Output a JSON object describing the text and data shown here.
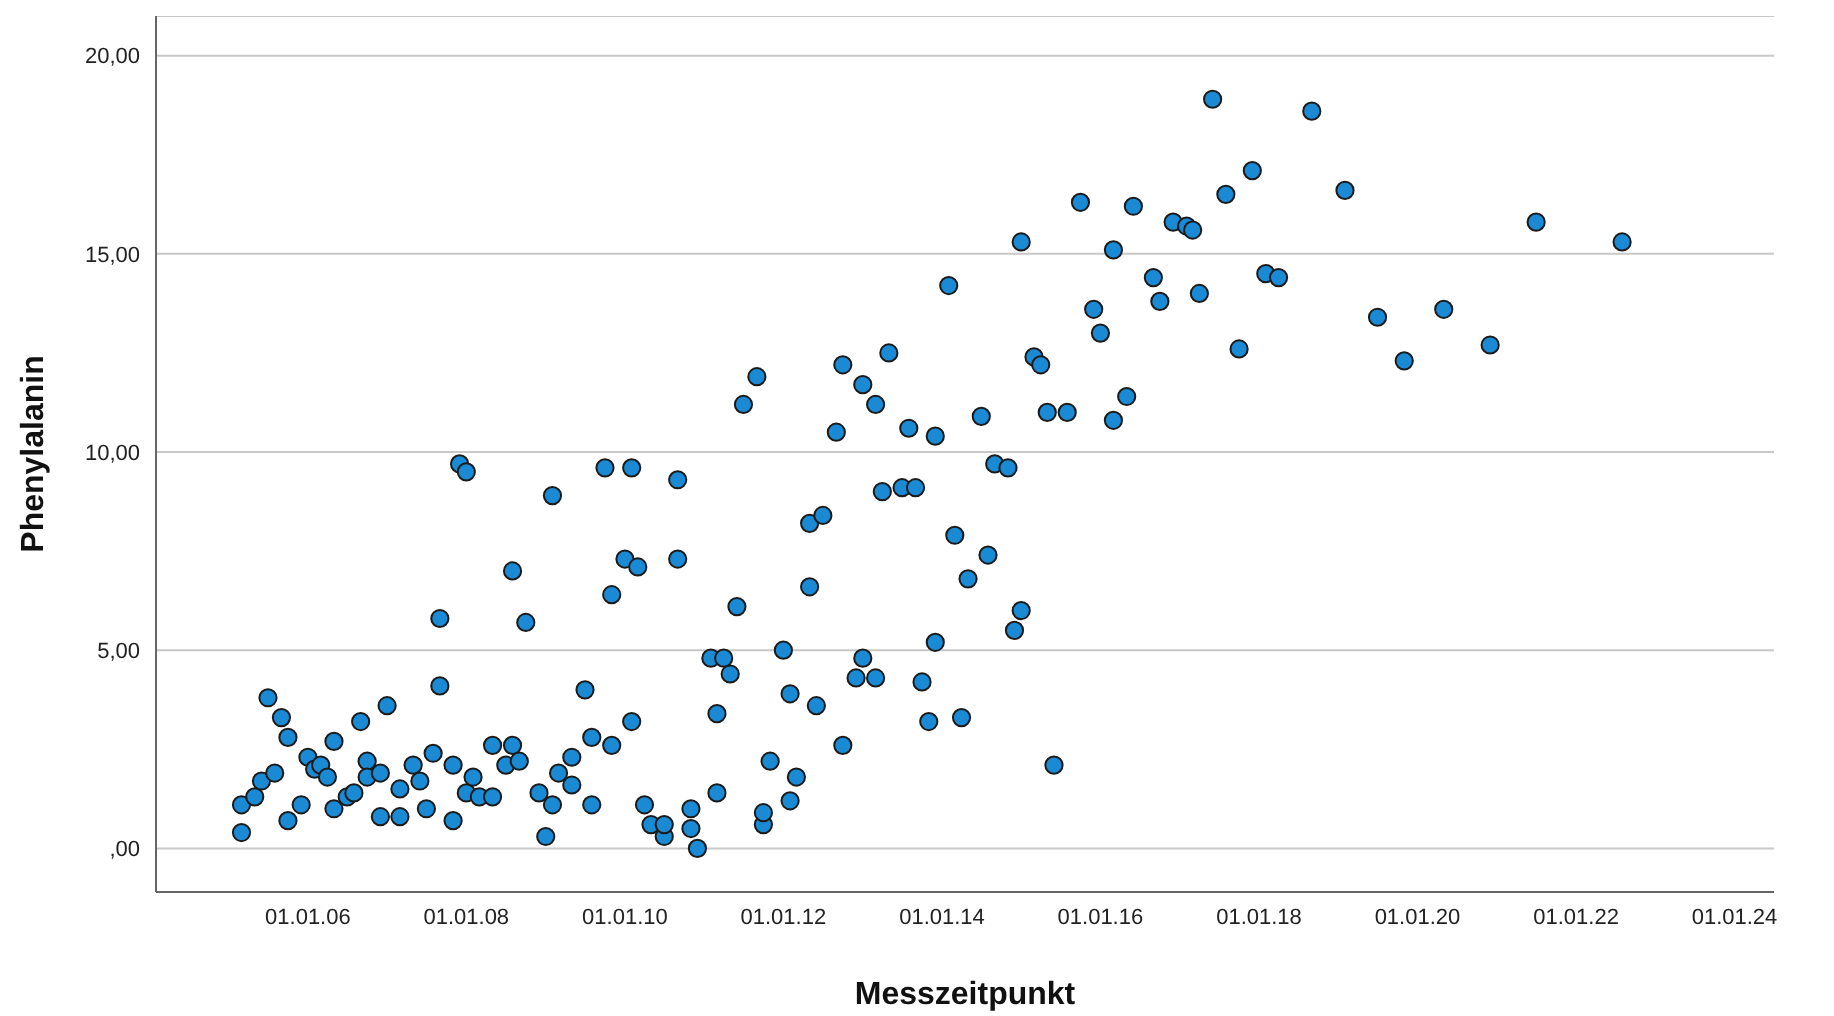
{
  "chart_data": {
    "type": "scatter",
    "xlabel": "Messzeitpunkt",
    "ylabel": "Phenylalanin",
    "x": [
      "2005-03",
      "2005-03",
      "2005-05",
      "2005-06",
      "2005-07",
      "2005-08",
      "2005-09",
      "2005-10",
      "2005-10",
      "2005-12",
      "2006-01",
      "2006-02",
      "2006-03",
      "2006-04",
      "2006-05",
      "2006-05",
      "2006-07",
      "2006-08",
      "2006-09",
      "2006-10",
      "2006-10",
      "2006-12",
      "2006-12",
      "2007-01",
      "2007-03",
      "2007-03",
      "2007-05",
      "2007-06",
      "2007-07",
      "2007-08",
      "2007-09",
      "2007-09",
      "2007-11",
      "2007-11",
      "2007-12",
      "2008-01",
      "2008-01",
      "2008-02",
      "2008-03",
      "2008-05",
      "2008-05",
      "2008-07",
      "2008-08",
      "2008-08",
      "2008-09",
      "2008-10",
      "2008-12",
      "2009-01",
      "2009-02",
      "2009-02",
      "2009-03",
      "2009-05",
      "2009-05",
      "2009-07",
      "2009-08",
      "2009-08",
      "2009-10",
      "2009-11",
      "2009-11",
      "2010-01",
      "2010-02",
      "2010-02",
      "2010-03",
      "2010-04",
      "2010-05",
      "2010-07",
      "2010-07",
      "2010-09",
      "2010-09",
      "2010-11",
      "2010-11",
      "2010-12",
      "2011-02",
      "2011-03",
      "2011-03",
      "2011-04",
      "2011-05",
      "2011-06",
      "2011-07",
      "2011-09",
      "2011-10",
      "2011-10",
      "2011-11",
      "2012-01",
      "2012-02",
      "2012-02",
      "2012-03",
      "2012-05",
      "2012-05",
      "2012-06",
      "2012-07",
      "2012-09",
      "2012-10",
      "2012-10",
      "2012-12",
      "2013-01",
      "2013-01",
      "2013-03",
      "2013-03",
      "2013-04",
      "2013-05",
      "2013-07",
      "2013-08",
      "2013-09",
      "2013-10",
      "2013-11",
      "2013-12",
      "2013-12",
      "2014-02",
      "2014-03",
      "2014-04",
      "2014-05",
      "2014-07",
      "2014-08",
      "2014-09",
      "2014-11",
      "2014-12",
      "2015-01",
      "2015-01",
      "2015-03",
      "2015-04",
      "2015-05",
      "2015-06",
      "2015-08",
      "2015-10",
      "2015-12",
      "2016-01",
      "2016-03",
      "2016-03",
      "2016-05",
      "2016-06",
      "2016-09",
      "2016-10",
      "2016-12",
      "2017-02",
      "2017-03",
      "2017-04",
      "2017-06",
      "2017-08",
      "2017-10",
      "2017-12",
      "2018-02",
      "2018-04",
      "2018-09",
      "2019-02",
      "2019-07",
      "2019-11",
      "2020-05",
      "2020-12",
      "2021-07",
      "2022-08"
    ],
    "series": [
      {
        "color": "#1a8ad4",
        "values": [
          0.4,
          1.1,
          1.3,
          1.7,
          3.8,
          1.9,
          3.3,
          2.8,
          0.7,
          1.1,
          2.3,
          2.0,
          2.1,
          1.8,
          1.0,
          2.7,
          1.3,
          1.4,
          3.2,
          2.2,
          1.8,
          1.9,
          0.8,
          3.6,
          0.8,
          1.5,
          2.1,
          1.7,
          1.0,
          2.4,
          5.8,
          4.1,
          0.7,
          2.1,
          9.7,
          9.5,
          1.4,
          1.8,
          1.3,
          1.3,
          2.6,
          2.1,
          7.0,
          2.6,
          2.2,
          5.7,
          1.4,
          0.3,
          8.9,
          1.1,
          1.9,
          1.6,
          2.3,
          4.0,
          2.8,
          1.1,
          9.6,
          2.6,
          6.4,
          7.3,
          9.6,
          3.2,
          7.1,
          1.1,
          0.6,
          0.3,
          0.6,
          7.3,
          9.3,
          0.5,
          1.0,
          0.0,
          4.8,
          1.4,
          3.4,
          4.8,
          4.4,
          6.1,
          11.2,
          11.9,
          0.6,
          0.9,
          2.2,
          5.0,
          3.9,
          1.2,
          1.8,
          8.2,
          6.6,
          3.6,
          8.4,
          10.5,
          12.2,
          2.6,
          4.3,
          4.8,
          11.7,
          11.2,
          4.3,
          9.0,
          12.5,
          9.1,
          10.6,
          9.1,
          4.2,
          3.2,
          5.2,
          10.4,
          14.2,
          7.9,
          3.3,
          6.8,
          10.9,
          7.4,
          9.7,
          9.6,
          5.5,
          6.0,
          15.3,
          12.4,
          12.2,
          11.0,
          2.1,
          11.0,
          16.3,
          13.6,
          13.0,
          15.1,
          10.8,
          11.4,
          16.2,
          14.4,
          13.8,
          15.8,
          15.7,
          15.6,
          14.0,
          18.9,
          16.5,
          12.6,
          17.1,
          14.5,
          14.4,
          18.6,
          16.6,
          13.4,
          12.3,
          13.6,
          12.7,
          15.8,
          15.3
        ]
      }
    ],
    "xlim": [
      "2004-02",
      "2024-07"
    ],
    "xticks": [
      {
        "value": "2006-01-01",
        "label": "01.01.06"
      },
      {
        "value": "2008-01-01",
        "label": "01.01.08"
      },
      {
        "value": "2010-01-01",
        "label": "01.01.10"
      },
      {
        "value": "2012-01-01",
        "label": "01.01.12"
      },
      {
        "value": "2014-01-01",
        "label": "01.01.14"
      },
      {
        "value": "2016-01-01",
        "label": "01.01.16"
      },
      {
        "value": "2018-01-01",
        "label": "01.01.18"
      },
      {
        "value": "2020-01-01",
        "label": "01.01.20"
      },
      {
        "value": "2022-01-01",
        "label": "01.01.22"
      },
      {
        "value": "2024-01-01",
        "label": "01.01.24"
      }
    ],
    "ylim": [
      -1.1,
      21
    ],
    "yticks": [
      {
        "value": 0,
        "label": ",00"
      },
      {
        "value": 5,
        "label": "5,00"
      },
      {
        "value": 10,
        "label": "10,00"
      },
      {
        "value": 15,
        "label": "15,00"
      },
      {
        "value": 20,
        "label": "20,00"
      }
    ],
    "grid": "y",
    "marker": "circle"
  }
}
